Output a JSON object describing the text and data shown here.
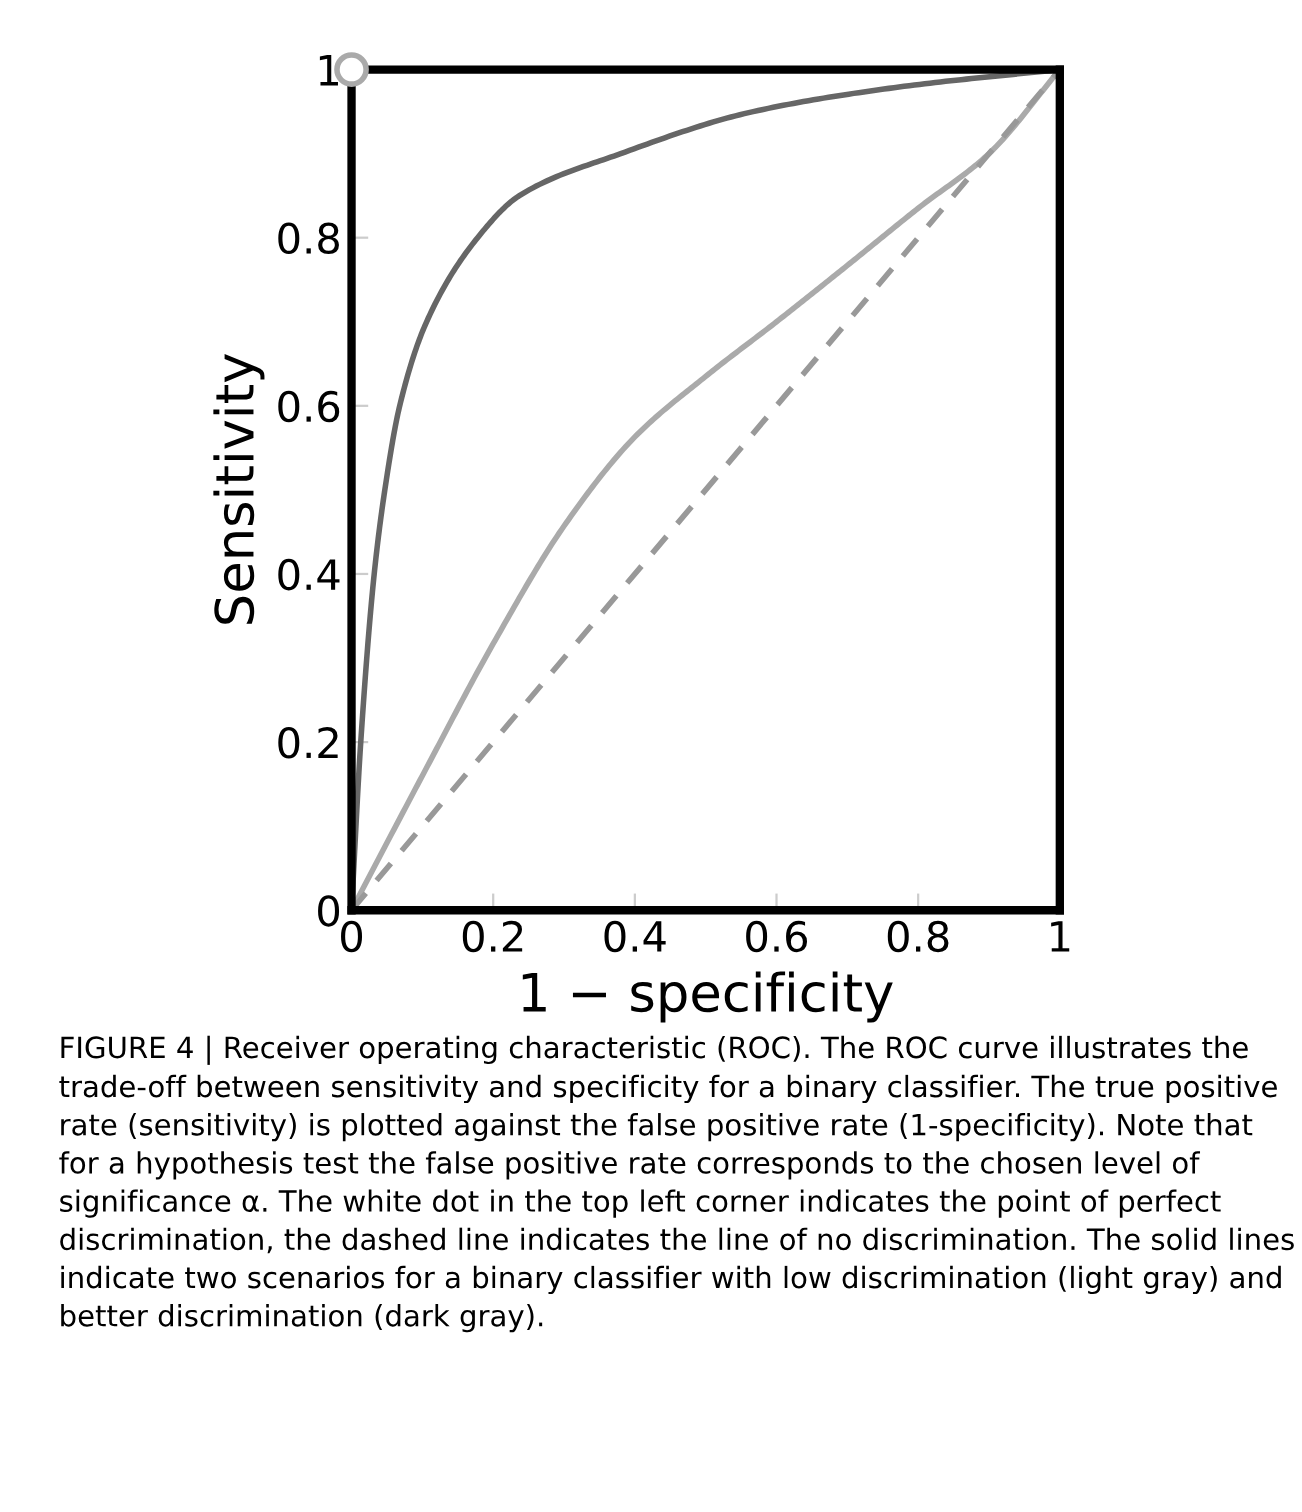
{
  "chart_data": {
    "type": "line",
    "xlabel": "1 − specificity",
    "ylabel": "Sensitivity",
    "xlim": [
      0,
      1
    ],
    "ylim": [
      0,
      1
    ],
    "xticks": [
      0,
      0.2,
      0.4,
      0.6,
      0.8,
      1
    ],
    "yticks": [
      0,
      0.2,
      0.4,
      0.6,
      0.8,
      1
    ],
    "grid": false,
    "legend": false,
    "marker": "none",
    "series": [
      {
        "color": "#aaaaaa",
        "line_style": "solid",
        "x": [
          0,
          0.1,
          0.2,
          0.3,
          0.4,
          0.5,
          0.6,
          0.7,
          0.8,
          0.9,
          1
        ],
        "values": [
          0,
          0.16,
          0.317,
          0.457,
          0.563,
          0.635,
          0.7,
          0.767,
          0.835,
          0.9,
          1
        ]
      },
      {
        "color": "#666666",
        "line_style": "solid",
        "x": [
          0,
          0.013,
          0.032,
          0.047,
          0.068,
          0.106,
          0.178,
          0.237,
          0.38,
          0.567,
          0.78,
          1
        ],
        "values": [
          0,
          0.2,
          0.4,
          0.5,
          0.6,
          0.7,
          0.8,
          0.85,
          0.9,
          0.95,
          0.98,
          1
        ]
      },
      {
        "color": "#999999",
        "line_style": "dashed",
        "x": [
          0,
          1
        ],
        "values": [
          0,
          1
        ]
      },
      {
        "type": "scatter",
        "color": "#aaaaaa",
        "marker": "circle",
        "x": [
          0
        ],
        "values": [
          1
        ]
      }
    ],
    "annotations": [
      "FIGURE 4 | Receiver operating characteristic (ROC). The ROC curve illustrates the trade-off between sensitivity and specificity for a binary classifier. The true positive rate (sensitivity) is plotted against the false positive rate (1-specificity). Note that for a hypothesis test the false positive rate corresponds to the chosen level of significance α. The white dot in the top left corner indicates the point of perfect discrimination, the dashed line indicates the line of no discrimination. The solid lines indicate two scenarios for a binary classifier with low discrimination (light gray) and better discrimination (dark gray)."
    ]
  }
}
